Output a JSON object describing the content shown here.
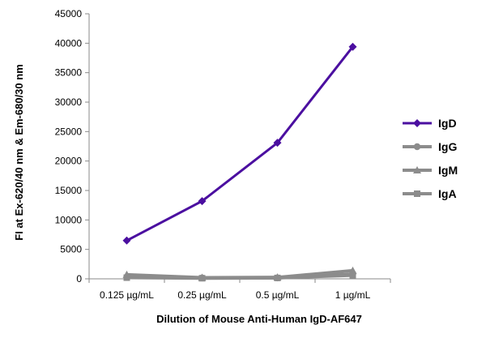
{
  "chart_data": {
    "type": "line",
    "title": "",
    "xlabel": "Dilution of Mouse Anti-Human IgD-AF647",
    "ylabel": "FI at Ex-620/40 nm & Em-680/30 nm",
    "categories": [
      "0.125 µg/mL",
      "0.25 µg/mL",
      "0.5 µg/mL",
      "1 µg/mL"
    ],
    "ylim": [
      0,
      45000
    ],
    "yticks": [
      0,
      5000,
      10000,
      15000,
      20000,
      25000,
      30000,
      35000,
      40000,
      45000
    ],
    "grid": false,
    "legend_position": "right",
    "series": [
      {
        "name": "IgD",
        "values": [
          6500,
          13200,
          23100,
          39400
        ],
        "color": "#4b0fa0",
        "marker": "diamond"
      },
      {
        "name": "IgG",
        "values": [
          300,
          150,
          150,
          800
        ],
        "color": "#8c8c8c",
        "marker": "circle"
      },
      {
        "name": "IgM",
        "values": [
          700,
          200,
          250,
          1400
        ],
        "color": "#8c8c8c",
        "marker": "triangle"
      },
      {
        "name": "IgA",
        "values": [
          200,
          100,
          150,
          600
        ],
        "color": "#8c8c8c",
        "marker": "square"
      }
    ]
  }
}
